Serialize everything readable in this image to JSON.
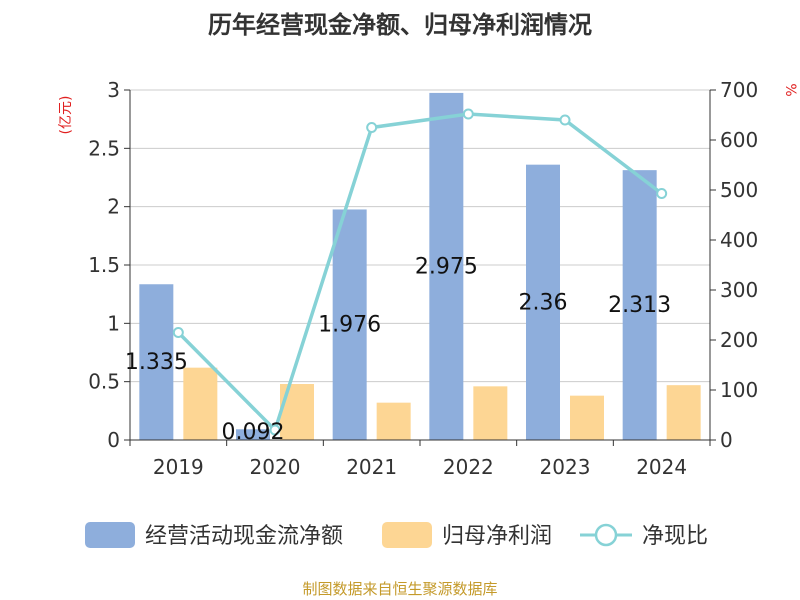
{
  "chart_data": {
    "type": "bar",
    "title": "历年经营现金净额、归母净利润情况",
    "y_left_label": "(亿元)",
    "y_right_label": "%",
    "categories": [
      "2019",
      "2020",
      "2021",
      "2022",
      "2023",
      "2024"
    ],
    "ylim_left": [
      0,
      3
    ],
    "yticks_left": [
      "0",
      "0.5",
      "1",
      "1.5",
      "2",
      "2.5",
      "3"
    ],
    "ylim_right": [
      0,
      700
    ],
    "yticks_right": [
      "0",
      "100",
      "200",
      "300",
      "400",
      "500",
      "600",
      "700"
    ],
    "grid": true,
    "legend_position": "bottom",
    "series": [
      {
        "name": "经营活动现金流净额",
        "kind": "bar",
        "axis": "left",
        "color": "#8eaedc",
        "values": [
          1.335,
          0.092,
          1.976,
          2.975,
          2.36,
          2.313
        ],
        "labels": [
          "1.335",
          "0.092",
          "1.976",
          "2.975",
          "2.36",
          "2.313"
        ]
      },
      {
        "name": "归母净利润",
        "kind": "bar",
        "axis": "left",
        "color": "#fdd694",
        "values": [
          0.62,
          0.48,
          0.32,
          0.46,
          0.38,
          0.47
        ]
      },
      {
        "name": "净现比",
        "kind": "line",
        "axis": "right",
        "color": "#86d2d6",
        "values": [
          215,
          20,
          625,
          652,
          640,
          493
        ]
      }
    ],
    "source_note": "制图数据来自恒生聚源数据库"
  }
}
